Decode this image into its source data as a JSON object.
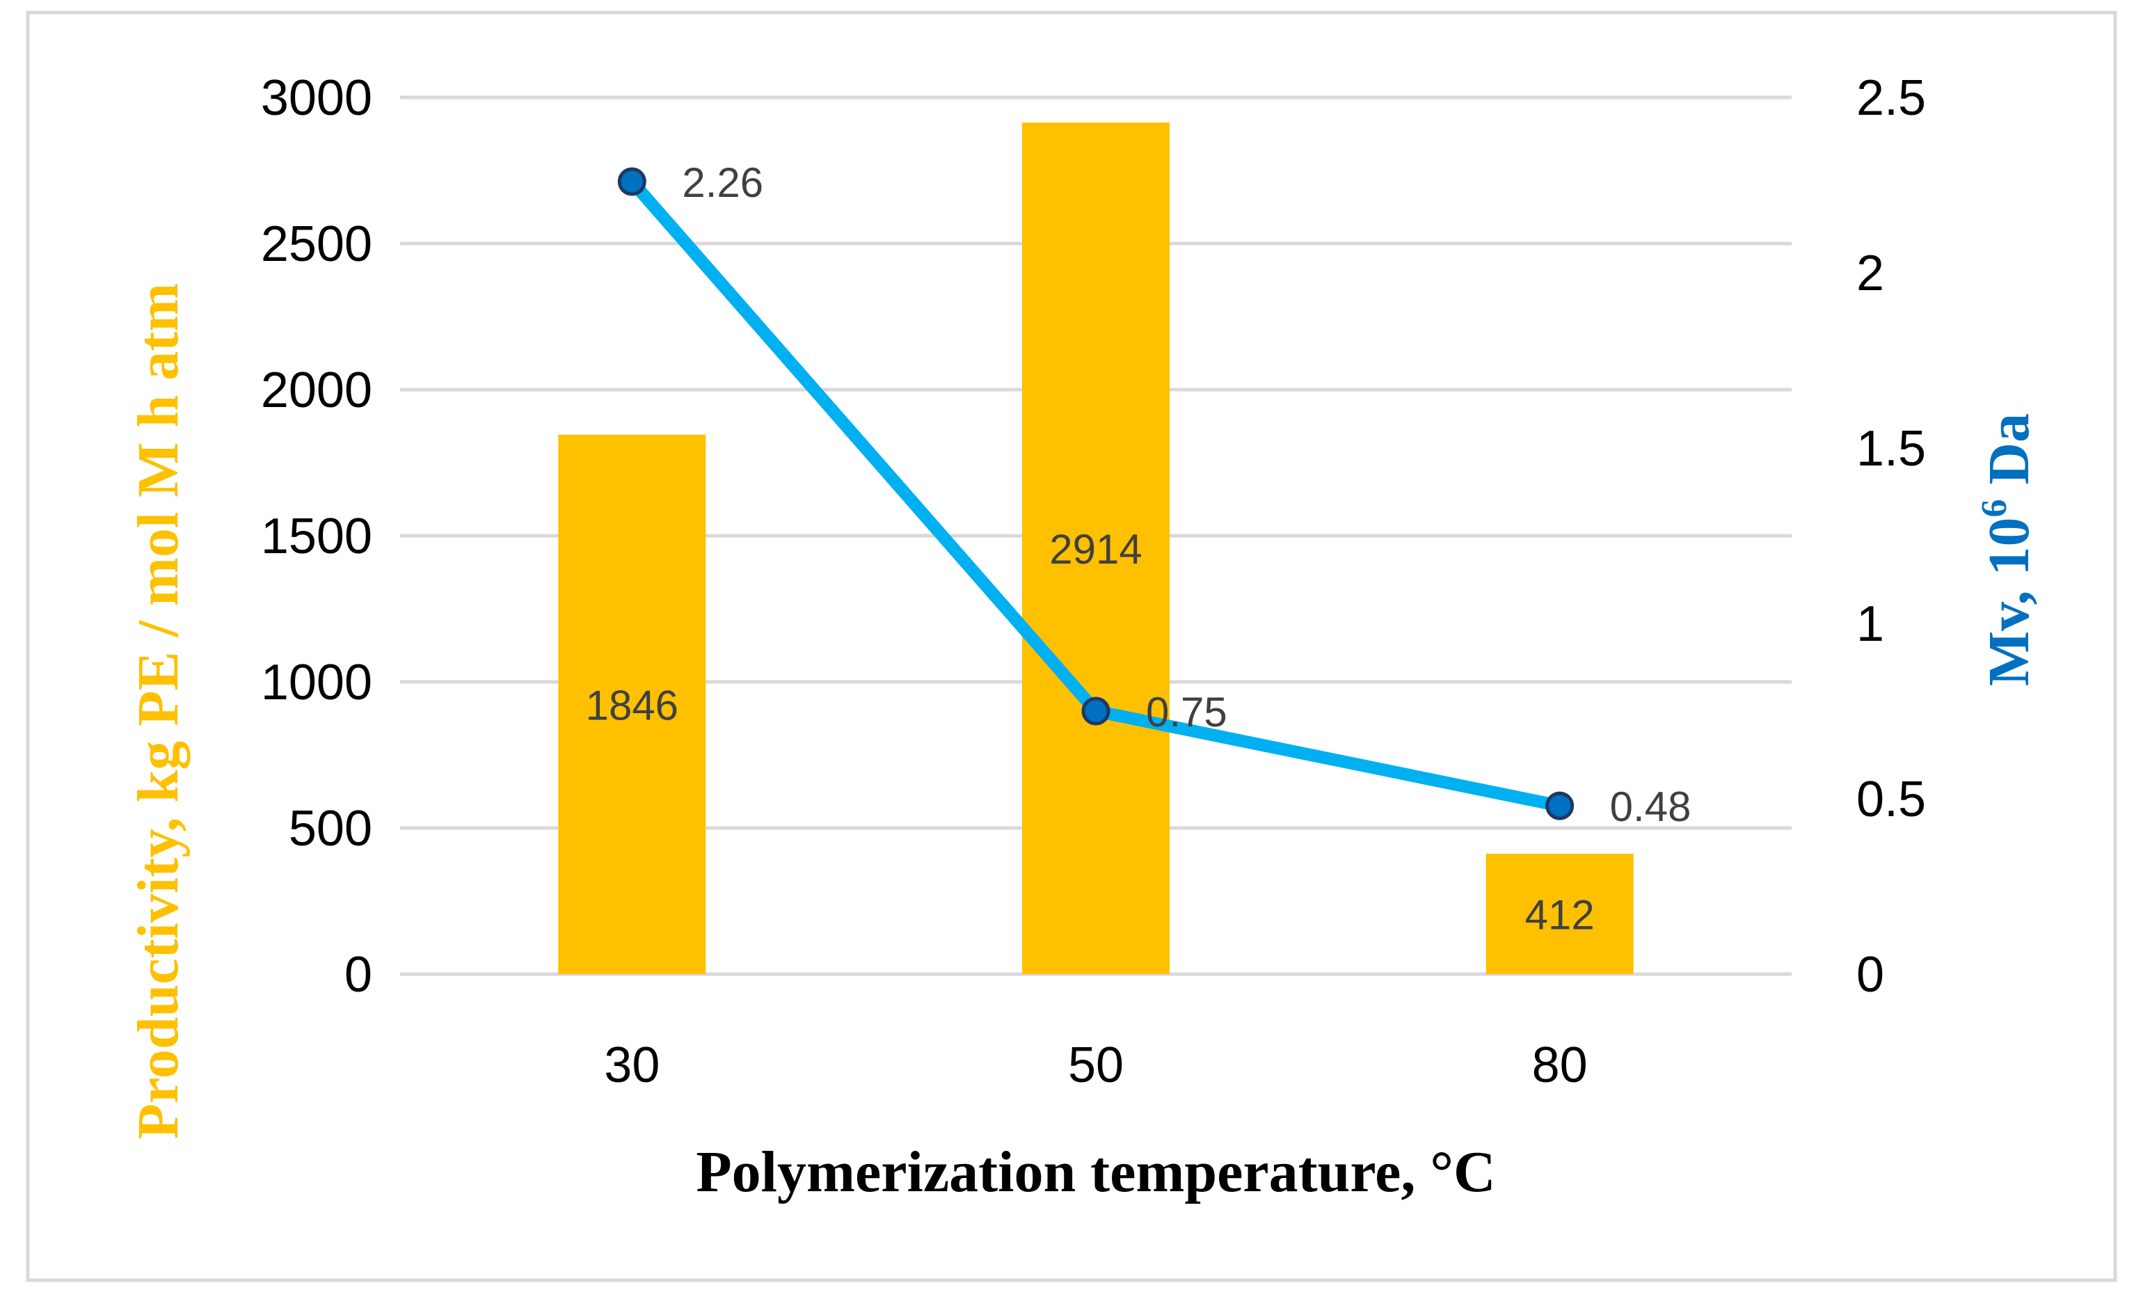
{
  "chart_data": {
    "type": "bar+line",
    "categories": [
      "30",
      "50",
      "80"
    ],
    "xlabel": "Polymerization temperature, °C",
    "bar_series": {
      "name": "Productivity",
      "values": [
        1846,
        2914,
        412
      ],
      "axis": "left",
      "color": "#FFC000",
      "labels": [
        "1846",
        "2914",
        "412"
      ]
    },
    "line_series": {
      "name": "Mv",
      "values": [
        2.26,
        0.75,
        0.48
      ],
      "axis": "right",
      "color": "#00B0F0",
      "marker_color": "#0070C0",
      "labels": [
        "2.26",
        "0.75",
        "0.48"
      ]
    },
    "left_axis": {
      "label": "Productivity, kg PE / mol M h atm",
      "label_color": "#FFC000",
      "ylim": [
        0,
        3000
      ],
      "ticks": [
        "0",
        "500",
        "1000",
        "1500",
        "2000",
        "2500",
        "3000"
      ]
    },
    "right_axis": {
      "label_main": "Mv, 10",
      "label_sup": "6",
      "label_tail": " Da",
      "label_color": "#0070C0",
      "ylim": [
        0,
        2.5
      ],
      "ticks": [
        "0",
        "0.5",
        "1",
        "1.5",
        "2",
        "2.5"
      ]
    },
    "grid": true
  }
}
